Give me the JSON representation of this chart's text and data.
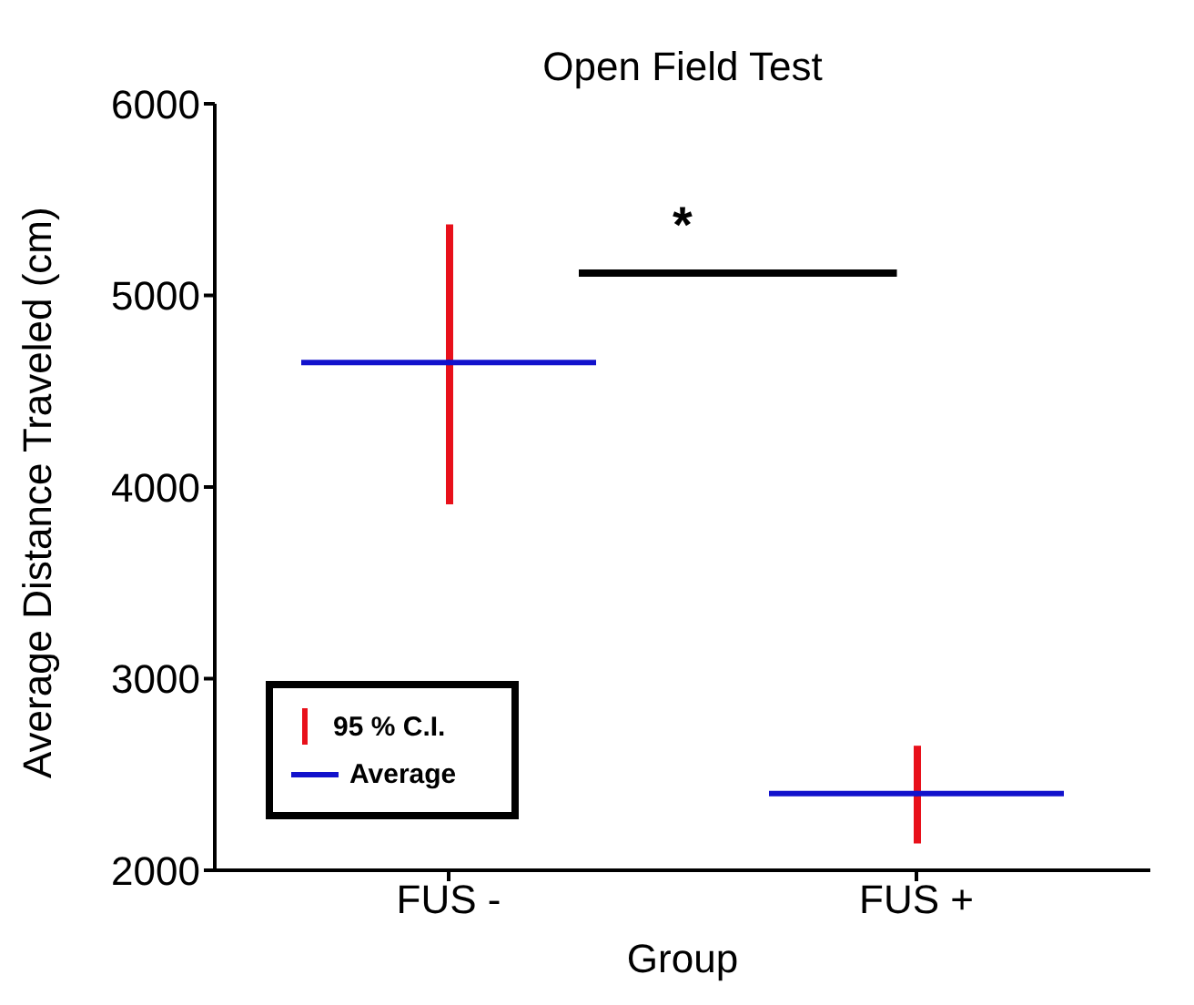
{
  "chart_data": {
    "type": "bar",
    "title": "Open Field Test",
    "xlabel": "Group",
    "ylabel": "Average Distance Traveled (cm)",
    "categories": [
      "FUS -",
      "FUS +"
    ],
    "series": [
      {
        "name": "95 % C.I.",
        "color": "#e8101a",
        "base": [
          3910,
          2140
        ],
        "values": [
          1460,
          510
        ]
      },
      {
        "name": "Average",
        "type": "scatter",
        "color": "#1212cc",
        "values": [
          4650,
          2400
        ]
      }
    ],
    "ylim": [
      2000,
      6000
    ],
    "yticks": [
      2000,
      3000,
      4000,
      5000,
      6000
    ],
    "annotations": [
      "*"
    ],
    "legend": "bottom left"
  }
}
